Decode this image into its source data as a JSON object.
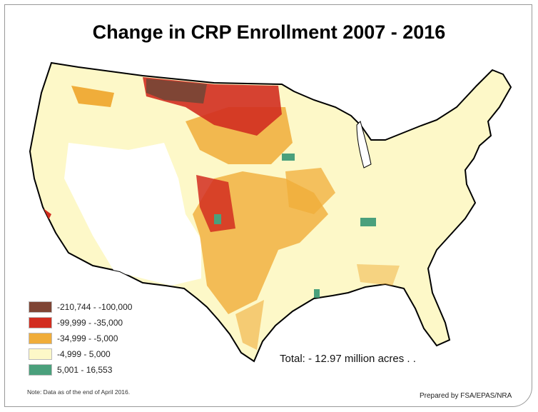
{
  "title": "Change in CRP Enrollment 2007 - 2016",
  "legend": [
    {
      "label": "-210,744 - -100,000",
      "color": "#7f4535"
    },
    {
      "label": "-99,999 - -35,000",
      "color": "#d22d20"
    },
    {
      "label": "-34,999 - -5,000",
      "color": "#f0ad3a"
    },
    {
      "label": "-4,999 - 5,000",
      "color": "#fdf8c8"
    },
    {
      "label": "5,001 - 16,553",
      "color": "#4aa07c"
    }
  ],
  "total": "Total: - 12.97 million acres . .",
  "note": "Note: Data as of the end of April 2016.",
  "prepared_by": "Prepared by FSA/EPAS/NRA"
}
